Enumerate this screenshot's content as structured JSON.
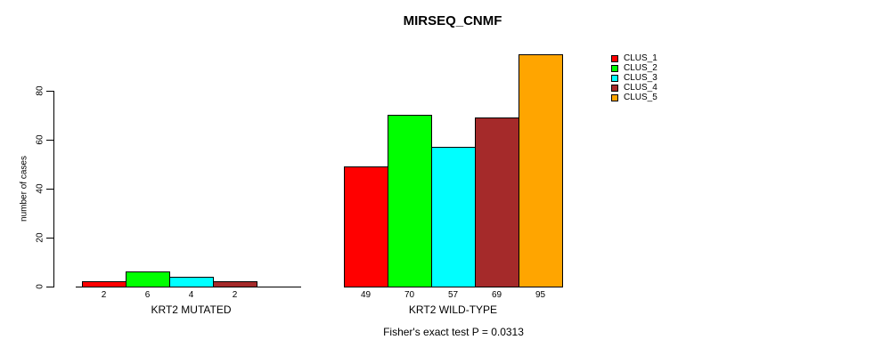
{
  "title": "MIRSEQ_CNMF",
  "footer": "Fisher's exact test P = 0.0313",
  "chart_data": {
    "type": "bar",
    "title": "MIRSEQ_CNMF",
    "xlabel": "",
    "ylabel": "number of cases",
    "ylim": [
      0,
      95
    ],
    "yticks": [
      0,
      20,
      40,
      60,
      80
    ],
    "grid": false,
    "legend_position": "right",
    "series": [
      {
        "name": "CLUS_1",
        "color": "#FF0000"
      },
      {
        "name": "CLUS_2",
        "color": "#00FF00"
      },
      {
        "name": "CLUS_3",
        "color": "#00FFFF"
      },
      {
        "name": "CLUS_4",
        "color": "#A52A2A"
      },
      {
        "name": "CLUS_5",
        "color": "#FFA500"
      }
    ],
    "groups": [
      {
        "label": "KRT2 MUTATED",
        "values": [
          2,
          6,
          4,
          2,
          0
        ],
        "bar_labels": [
          "2",
          "6",
          "4",
          "2",
          ""
        ]
      },
      {
        "label": "KRT2 WILD-TYPE",
        "values": [
          49,
          70,
          57,
          69,
          95
        ],
        "bar_labels": [
          "49",
          "70",
          "57",
          "69",
          "95"
        ]
      }
    ],
    "annotation": "Fisher's exact test P = 0.0313"
  }
}
